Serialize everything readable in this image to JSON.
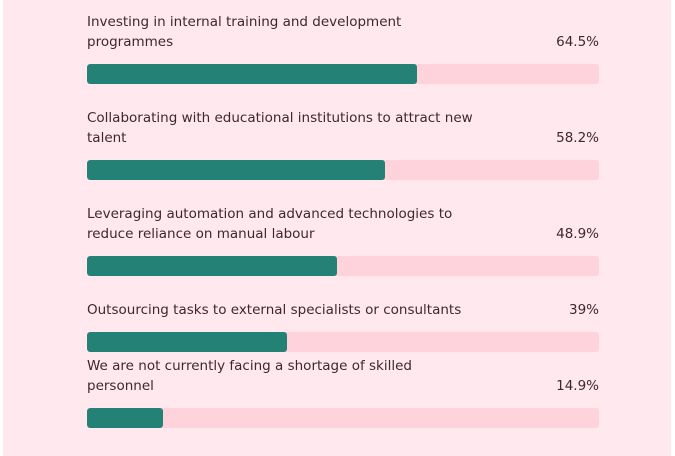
{
  "colors": {
    "bar_fill": "#238176",
    "bar_track": "#ffd3dc",
    "background": "#ffe8ee"
  },
  "chart_data": {
    "type": "bar",
    "orientation": "horizontal",
    "categories": [
      "Investing in internal training and development programmes",
      "Collaborating with educational institutions to attract new talent",
      "Leveraging automation and advanced technologies to reduce reliance on manual labour",
      "Outsourcing tasks to external specialists or consultants",
      "We are not currently facing a shortage of skilled personnel"
    ],
    "values": [
      64.5,
      58.2,
      48.9,
      39,
      14.9
    ],
    "value_labels": [
      "64.5%",
      "58.2%",
      "48.9%",
      "39%",
      "14.9%"
    ],
    "xlim": [
      0,
      100
    ],
    "grid": false
  }
}
